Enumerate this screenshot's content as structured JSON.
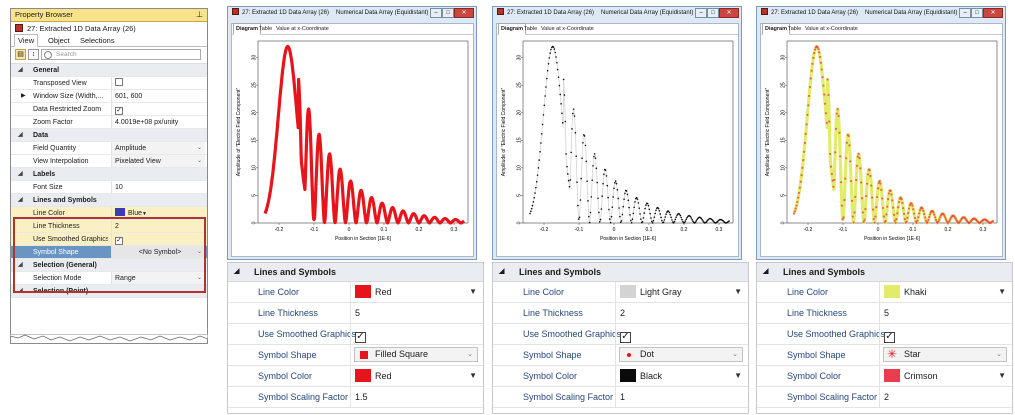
{
  "property_browser": {
    "title": "Property Browser",
    "pin_glyph": "⊥",
    "object_title": "27: Extracted 1D Data Array (26)",
    "tabs": [
      "View",
      "Object",
      "Selections"
    ],
    "search_placeholder": "Search",
    "rows": [
      {
        "type": "category",
        "label": "General"
      },
      {
        "type": "prop",
        "label": "Transposed View",
        "checkbox": false
      },
      {
        "type": "prop",
        "label": "Window Size (Width,...",
        "value": "601, 600",
        "expander": true
      },
      {
        "type": "prop",
        "label": "Data Restricted Zoom",
        "checkbox": true
      },
      {
        "type": "prop",
        "label": "Zoom Factor",
        "value": "4.0019e+08 px/unity"
      },
      {
        "type": "category",
        "label": "Data"
      },
      {
        "type": "prop",
        "label": "Field Quantity",
        "value": "Amplitude",
        "dropdown": true
      },
      {
        "type": "prop",
        "label": "View Interpolation",
        "value": "Pixelated View",
        "dropdown": true
      },
      {
        "type": "category",
        "label": "Labels"
      },
      {
        "type": "prop",
        "label": "Font Size",
        "value": "10"
      },
      {
        "type": "category",
        "label": "Lines and Symbols",
        "highlight": true
      },
      {
        "type": "prop",
        "label": "Line Color",
        "value": "Blue",
        "swatch": "#3b3bb5",
        "caret": true,
        "highlight": true
      },
      {
        "type": "prop",
        "label": "Line Thickness",
        "value": "2",
        "highlight": true
      },
      {
        "type": "prop",
        "label": "Use Smoothed Graphics",
        "checkbox": true,
        "highlight": true
      },
      {
        "type": "prop",
        "label": "Symbol Shape",
        "value": "<No Symbol>",
        "dropdown": true,
        "selected": true
      },
      {
        "type": "category",
        "label": "Selection (General)"
      },
      {
        "type": "prop",
        "label": "Selection Mode",
        "value": "Range",
        "dropdown": true
      },
      {
        "type": "category",
        "label": "Selection (Point)"
      }
    ]
  },
  "windows": [
    {
      "title": "27: Extracted 1D Data Array (26)",
      "caption": "Numerical Data Array (Equidistant)",
      "tabs": [
        "Diagram",
        "Table",
        "Value at x-Coordinate"
      ],
      "xlabel": "Position in Section [1E-6]",
      "ylabel": "Amplitude of \"Electric Field Component\"",
      "style": "red"
    },
    {
      "title": "27: Extracted 1D Data Array (26)",
      "caption": "Numerical Data Array (Equidistant)",
      "tabs": [
        "Diagram",
        "Table",
        "Value at x-Coordinate"
      ],
      "xlabel": "Position in Section [1E-6]",
      "ylabel": "Amplitude of \"Electric Field Component\"",
      "style": "dots"
    },
    {
      "title": "27: Extracted 1D Data Array (26)",
      "caption": "Numerical Data Array (Equidistant)",
      "tabs": [
        "Diagram",
        "Table",
        "Value at x-Coordinate"
      ],
      "xlabel": "Position in Section [1E-6]",
      "ylabel": "Amplitude of \"Electric Field Component\"",
      "style": "stars"
    }
  ],
  "chart_axes": {
    "xticks": [
      "-0.2",
      "-0.1",
      "0",
      "0.1",
      "0.2",
      "0.3"
    ],
    "yticks": [
      "0",
      "5",
      "10",
      "15",
      "20",
      "25",
      "30"
    ],
    "xlim": [
      -0.26,
      0.34
    ],
    "ylim": [
      0,
      33
    ]
  },
  "panels": [
    {
      "header": "Lines and Symbols",
      "rows": [
        {
          "label": "Line Color",
          "value": "Red",
          "swatch": "#e8141b",
          "caret": true
        },
        {
          "label": "Line Thickness",
          "value": "5"
        },
        {
          "label": "Use Smoothed Graphics",
          "checkbox": true
        },
        {
          "label": "Symbol Shape",
          "value": "Filled Square",
          "symbol": "square",
          "symbol_color": "#e8141b",
          "dropdown": true
        },
        {
          "label": "Symbol Color",
          "value": "Red",
          "swatch": "#e8141b",
          "caret": true
        },
        {
          "label": "Symbol Scaling Factor",
          "value": "1.5"
        }
      ]
    },
    {
      "header": "Lines and Symbols",
      "rows": [
        {
          "label": "Line Color",
          "value": "Light Gray",
          "swatch": "#d3d3d3",
          "caret": true
        },
        {
          "label": "Line Thickness",
          "value": "2"
        },
        {
          "label": "Use Smoothed Graphics",
          "checkbox": true
        },
        {
          "label": "Symbol Shape",
          "value": "Dot",
          "symbol": "dot",
          "symbol_color": "#e8141b",
          "dropdown": true
        },
        {
          "label": "Symbol Color",
          "value": "Black",
          "swatch": "#0a0a0a",
          "caret": true
        },
        {
          "label": "Symbol Scaling Factor",
          "value": "1"
        }
      ]
    },
    {
      "header": "Lines and Symbols",
      "rows": [
        {
          "label": "Line Color",
          "value": "Khaki",
          "swatch": "#e2ec6a",
          "caret": true
        },
        {
          "label": "Line Thickness",
          "value": "5"
        },
        {
          "label": "Use Smoothed Graphics",
          "checkbox": true
        },
        {
          "label": "Symbol Shape",
          "value": "Star",
          "symbol": "star",
          "symbol_color": "#e8141b",
          "dropdown": true
        },
        {
          "label": "Symbol Color",
          "value": "Crimson",
          "swatch": "#ea3c4e",
          "caret": true
        },
        {
          "label": "Symbol Scaling Factor",
          "value": "2"
        }
      ]
    }
  ]
}
